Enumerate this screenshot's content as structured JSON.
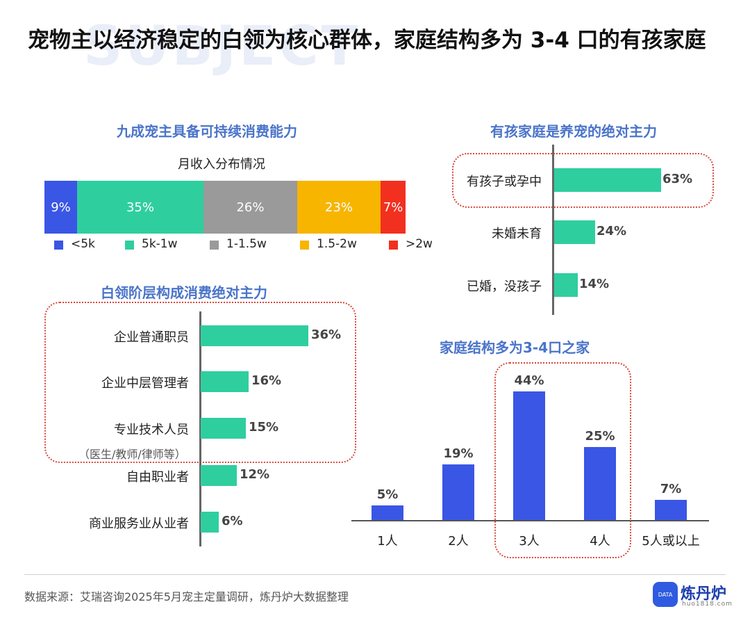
{
  "page": {
    "watermark": "SUBJECT",
    "title": "宠物主以经济稳定的白领为核心群体，家庭结构多为 3-4 口的有孩家庭"
  },
  "income": {
    "section_title": "九成宠主具备可持续消费能力",
    "chart_title": "月收入分布情况",
    "legend": [
      "<5k",
      "5k-1w",
      "1-1.5w",
      "1.5-2w",
      ">2w"
    ],
    "value_labels": [
      "9%",
      "35%",
      "26%",
      "23%",
      "7%"
    ]
  },
  "occupation": {
    "section_title": "白领阶层构成消费绝对主力",
    "sub_note": "（医生/教师/律师等）",
    "value_labels": [
      "36%",
      "16%",
      "15%",
      "12%",
      "6%"
    ]
  },
  "children": {
    "section_title": "有孩家庭是养宠的绝对主力",
    "value_labels": [
      "63%",
      "24%",
      "14%"
    ]
  },
  "family": {
    "section_title": "家庭结构多为3-4口之家",
    "value_labels": [
      "5%",
      "19%",
      "44%",
      "25%",
      "7%"
    ]
  },
  "footer": {
    "source": "数据来源：艾瑞咨询2025年5月宠主定量调研，炼丹炉大数据整理",
    "logo_name": "炼丹炉",
    "logo_icon_text": "DATA",
    "logo_url": "huo1818.com"
  },
  "colors": {
    "green": "#2fce9f",
    "blue": "#3a56e4",
    "grey": "#9a9a9a",
    "yellow": "#f7b500",
    "red": "#f2301f",
    "section_title": "#4a74c9",
    "highlight_border": "#d9463a"
  },
  "chart_data": [
    {
      "type": "bar",
      "orientation": "stacked-horizontal",
      "title": "月收入分布情况",
      "categories": [
        "<5k",
        "5k-1w",
        "1-1.5w",
        "1.5-2w",
        ">2w"
      ],
      "values": [
        9,
        35,
        26,
        23,
        7
      ],
      "legend_position": "bottom"
    },
    {
      "type": "bar",
      "orientation": "horizontal",
      "title": "白领阶层构成消费绝对主力",
      "categories": [
        "企业普通职员",
        "企业中层管理者",
        "专业技术人员",
        "自由职业者",
        "商业服务业从业者"
      ],
      "values": [
        36,
        16,
        15,
        12,
        6
      ]
    },
    {
      "type": "bar",
      "orientation": "horizontal",
      "title": "有孩家庭是养宠的绝对主力",
      "categories": [
        "有孩子或孕中",
        "未婚未育",
        "已婚，没孩子"
      ],
      "values": [
        63,
        24,
        14
      ]
    },
    {
      "type": "bar",
      "orientation": "vertical",
      "title": "家庭结构多为3-4口之家",
      "categories": [
        "1人",
        "2人",
        "3人",
        "4人",
        "5人或以上"
      ],
      "values": [
        5,
        19,
        44,
        25,
        7
      ]
    }
  ]
}
